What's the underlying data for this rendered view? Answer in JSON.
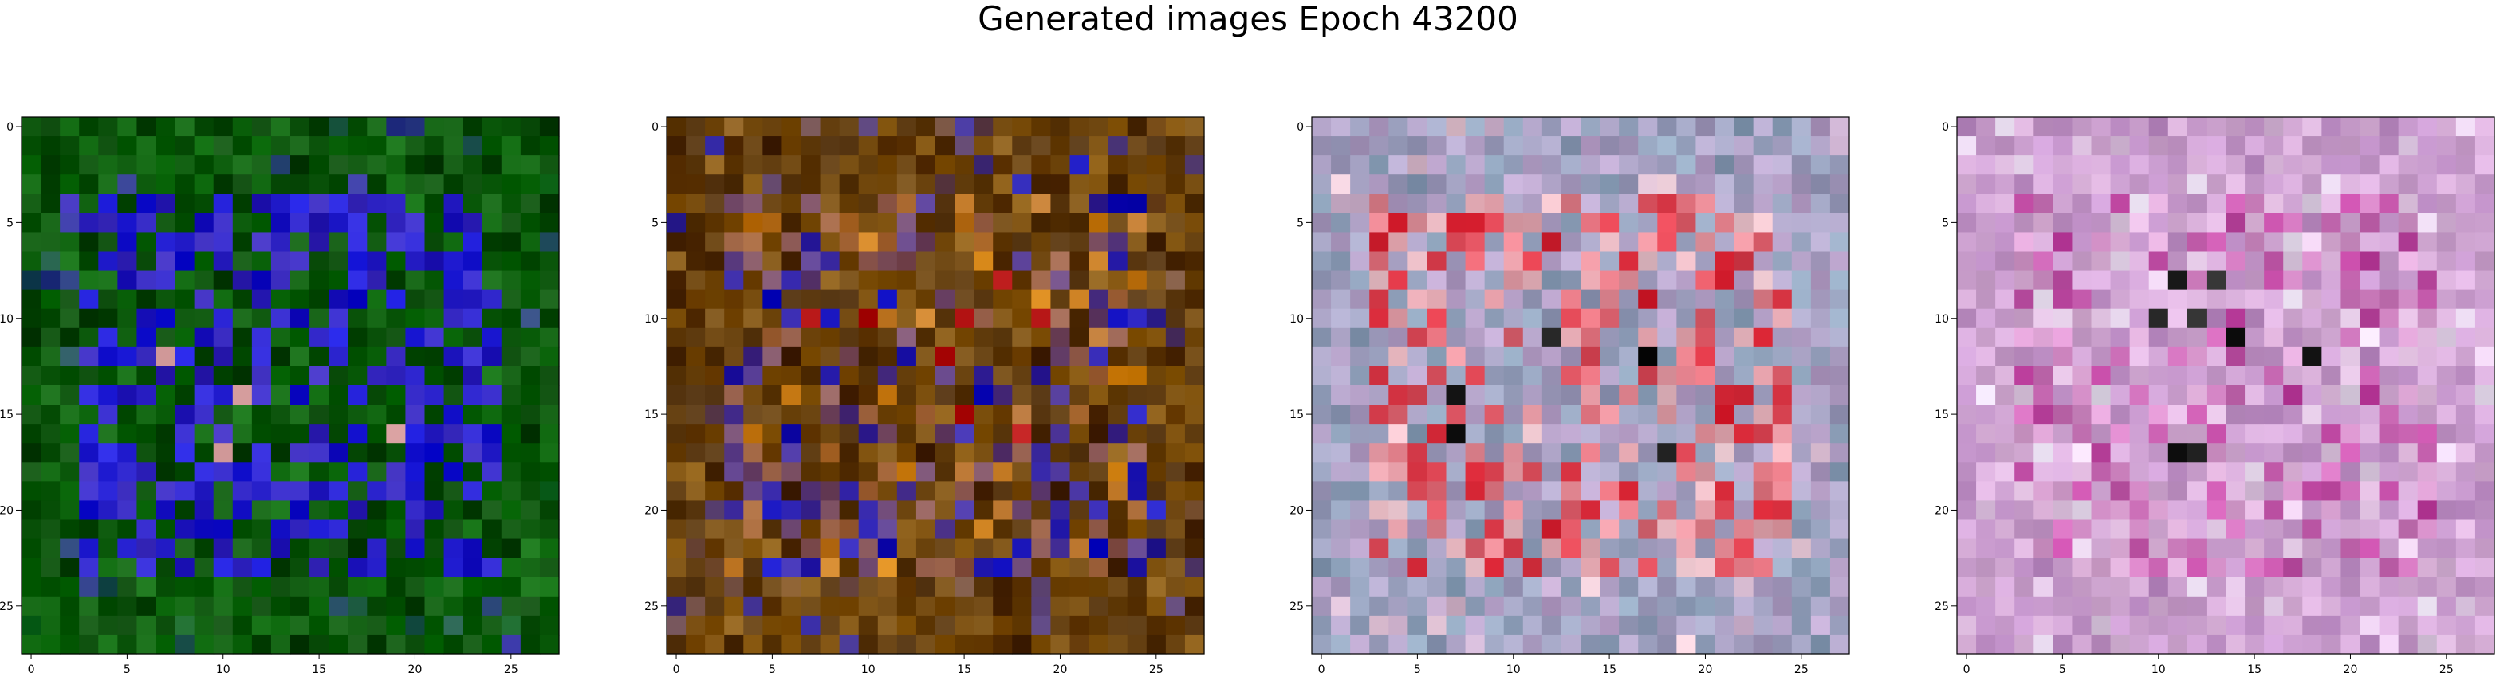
{
  "figure": {
    "title": "Generated images Epoch 43200"
  },
  "chart_data": {
    "type": "heatmap",
    "title": "Generated images Epoch 43200",
    "panels": [
      {
        "name": "",
        "dominant": "green-blue",
        "colors": {
          "bg": "#0b6a0b",
          "alt": "#064406",
          "accent": "#1515d8",
          "accent2": "#3a2ab8",
          "spark": "#e8b0b0"
        }
      },
      {
        "name": "",
        "dominant": "brown-orange",
        "colors": {
          "bg": "#8a5a10",
          "alt": "#4a2a08",
          "accent": "#d08010",
          "accent2": "#1010c8",
          "spark": "#b01010"
        }
      },
      {
        "name": "",
        "dominant": "pastel-red",
        "colors": {
          "bg": "#b8a0c8",
          "alt": "#8aa0b8",
          "accent": "#d82030",
          "accent2": "#e8c8d0",
          "spark": "#101010"
        }
      },
      {
        "name": "",
        "dominant": "pastel-pink",
        "colors": {
          "bg": "#d8b0d8",
          "alt": "#c090c8",
          "accent": "#c040a0",
          "accent2": "#e8e0f0",
          "spark": "#202020"
        }
      }
    ],
    "grid_size": 28,
    "x_ticks": [
      0,
      5,
      10,
      15,
      20,
      25
    ],
    "y_ticks": [
      0,
      5,
      10,
      15,
      20,
      25
    ],
    "xlim": [
      -0.5,
      27.5
    ],
    "ylim": [
      27.5,
      -0.5
    ]
  }
}
